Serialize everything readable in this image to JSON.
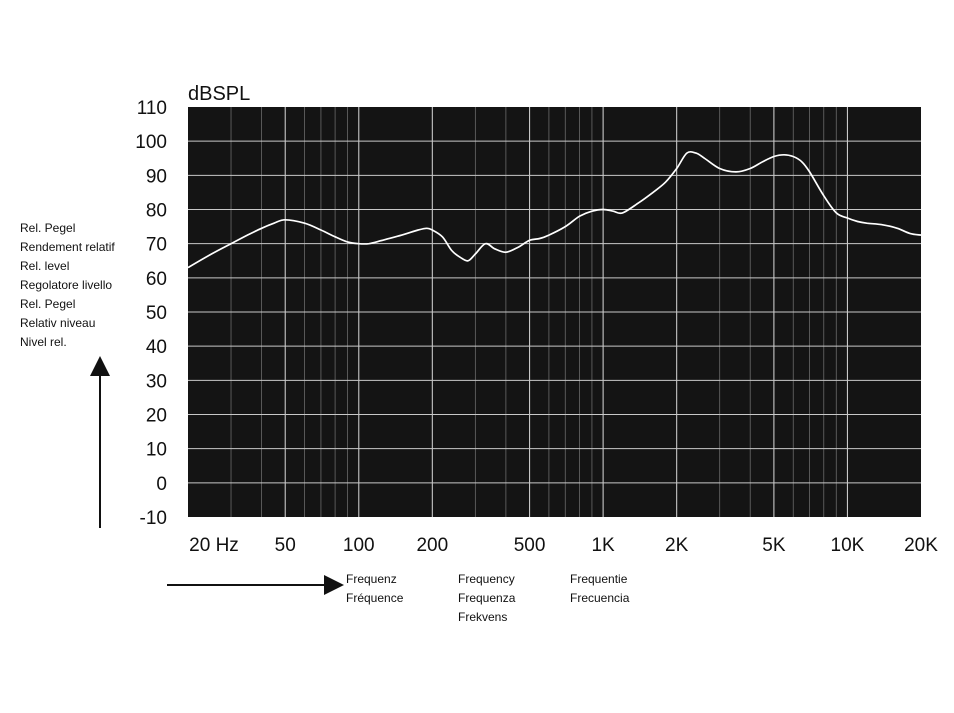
{
  "chart_data": {
    "type": "line",
    "ylabel": "dBSPL",
    "ylim": [
      -10,
      110
    ],
    "yticks": [
      "110",
      "100",
      "90",
      "80",
      "70",
      "60",
      "50",
      "40",
      "30",
      "20",
      "10",
      "0",
      "-10"
    ],
    "xscale": "log",
    "xlim": [
      20,
      20000
    ],
    "xticks": [
      {
        "label": "20 Hz",
        "value": 20
      },
      {
        "label": "50",
        "value": 50
      },
      {
        "label": "100",
        "value": 100
      },
      {
        "label": "200",
        "value": 200
      },
      {
        "label": "500",
        "value": 500
      },
      {
        "label": "1K",
        "value": 1000
      },
      {
        "label": "2K",
        "value": 2000
      },
      {
        "label": "5K",
        "value": 5000
      },
      {
        "label": "10K",
        "value": 10000
      },
      {
        "label": "20K",
        "value": 20000
      }
    ],
    "grid": true,
    "background": "#141414",
    "line_color": "#ffffff",
    "axis_labels_y": [
      "Rel. Pegel",
      "Rendement relatif",
      "Rel. level",
      "Regolatore livello",
      "Rel. Pegel",
      "Relativ niveau",
      "Nivel rel."
    ],
    "axis_labels_x": [
      [
        "Frequenz",
        "Fréquence"
      ],
      [
        "Frequency",
        "Frequenza",
        "Frekvens"
      ],
      [
        "Frequentie",
        "Frecuencia"
      ]
    ],
    "series": [
      {
        "x": [
          20,
          25,
          30,
          35,
          40,
          45,
          50,
          60,
          70,
          80,
          90,
          100,
          110,
          125,
          150,
          175,
          190,
          200,
          220,
          240,
          260,
          280,
          300,
          330,
          360,
          400,
          450,
          500,
          550,
          600,
          700,
          800,
          900,
          1000,
          1100,
          1200,
          1400,
          1600,
          1800,
          2000,
          2200,
          2400,
          2600,
          3000,
          3500,
          4000,
          4500,
          5000,
          5500,
          6000,
          6500,
          7000,
          8000,
          9000,
          10000,
          11000,
          12000,
          14000,
          16000,
          18000,
          20000
        ],
        "y": [
          63,
          67,
          70,
          72.5,
          74.5,
          76,
          77,
          76,
          74,
          72,
          70.5,
          70,
          70,
          71,
          72.5,
          74,
          74.5,
          74,
          72,
          68,
          66,
          65,
          67,
          70,
          68.5,
          67.5,
          69,
          71,
          71.5,
          72.5,
          75,
          78,
          79.5,
          80,
          79.5,
          79,
          82,
          85,
          88,
          92,
          96.5,
          96.5,
          95,
          92,
          91,
          92,
          94,
          95.5,
          96,
          95.5,
          94,
          91,
          84,
          79,
          77.5,
          76.5,
          76,
          75.5,
          74.5,
          73,
          72.5
        ]
      }
    ]
  }
}
